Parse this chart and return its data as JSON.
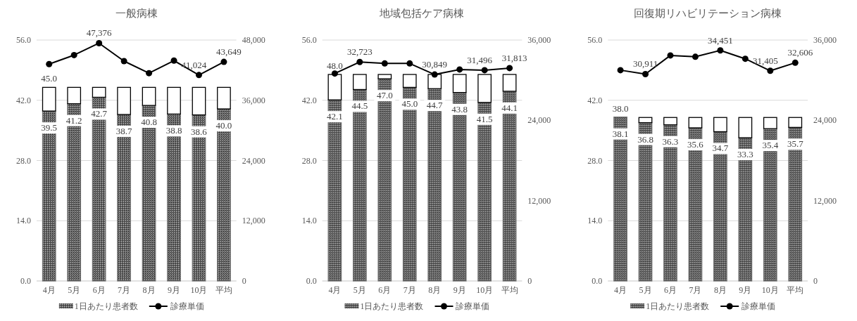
{
  "chart_data": [
    {
      "type": "bar",
      "stacked": true,
      "title": "一般病棟",
      "categories": [
        "4月",
        "5月",
        "6月",
        "7月",
        "8月",
        "9月",
        "10月",
        "平均"
      ],
      "ylim": [
        0,
        56
      ],
      "yticks": [
        {
          "value": 0,
          "label": "0.0"
        },
        {
          "value": 14,
          "label": "14.0"
        },
        {
          "value": 28,
          "label": "28.0"
        },
        {
          "value": 42,
          "label": "42.0"
        },
        {
          "value": 56,
          "label": "56.0"
        }
      ],
      "y2lim": [
        0,
        48000
      ],
      "y2ticks": [
        {
          "value": 0,
          "label": "0"
        },
        {
          "value": 12000,
          "label": "12,000"
        },
        {
          "value": 24000,
          "label": "24,000"
        },
        {
          "value": 36000,
          "label": "36,000"
        },
        {
          "value": 48000,
          "label": "48,000"
        }
      ],
      "grid": "y",
      "legend": "bottom",
      "totals": [
        "45.0",
        null,
        null,
        null,
        null,
        null,
        null,
        null
      ],
      "series": [
        {
          "type": "bar",
          "name": "1日あたり患者数",
          "color": "#707070",
          "values": [
            39.5,
            41.2,
            42.7,
            38.7,
            40.8,
            38.8,
            38.6,
            40.0
          ],
          "value_labels": [
            "39.5",
            "41.2",
            "42.7",
            "38.7",
            "40.8",
            "38.8",
            "38.6",
            "40.0"
          ]
        },
        {
          "type": "bar",
          "color": "#ffffff",
          "values": [
            5.5,
            3.8,
            2.3,
            6.3,
            4.2,
            6.2,
            6.4,
            5.0
          ]
        },
        {
          "type": "line",
          "name": "診療単価",
          "color": "#000000",
          "axis": "y2",
          "marker": "circle",
          "values": [
            43200,
            45000,
            47376,
            43800,
            41400,
            43900,
            41024,
            43649
          ],
          "value_labels": [
            null,
            null,
            "47,376",
            null,
            null,
            null,
            "41,024",
            "43,649"
          ]
        }
      ]
    },
    {
      "type": "bar",
      "stacked": true,
      "title": "地域包括ケア病棟",
      "categories": [
        "4月",
        "5月",
        "6月",
        "7月",
        "8月",
        "9月",
        "10月",
        "平均"
      ],
      "ylim": [
        0,
        56
      ],
      "yticks": [
        {
          "value": 0,
          "label": "0.0"
        },
        {
          "value": 14,
          "label": "14.0"
        },
        {
          "value": 28,
          "label": "28.0"
        },
        {
          "value": 42,
          "label": "42.0"
        },
        {
          "value": 56,
          "label": "56.0"
        }
      ],
      "y2lim": [
        0,
        36000
      ],
      "y2ticks": [
        {
          "value": 0,
          "label": "0"
        },
        {
          "value": 12000,
          "label": "12,000"
        },
        {
          "value": 24000,
          "label": "24,000"
        },
        {
          "value": 36000,
          "label": "36,000"
        }
      ],
      "grid": "y",
      "legend": "bottom",
      "totals": [
        "48.0",
        null,
        null,
        null,
        null,
        null,
        null,
        null
      ],
      "series": [
        {
          "type": "bar",
          "name": "1日あたり患者数",
          "color": "#707070",
          "values": [
            42.1,
            44.5,
            47.0,
            45.0,
            44.7,
            43.8,
            41.5,
            44.1
          ],
          "value_labels": [
            "42.1",
            "44.5",
            "47.0",
            "45.0",
            "44.7",
            "43.8",
            "41.5",
            "44.1"
          ]
        },
        {
          "type": "bar",
          "color": "#ffffff",
          "values": [
            5.9,
            3.5,
            1.0,
            3.0,
            3.3,
            4.2,
            6.5,
            3.9
          ]
        },
        {
          "type": "line",
          "name": "診療単価",
          "color": "#000000",
          "axis": "y2",
          "marker": "circle",
          "values": [
            31000,
            32723,
            32500,
            32500,
            30849,
            31600,
            31496,
            31813
          ],
          "value_labels": [
            null,
            "32,723",
            null,
            null,
            "30,849",
            null,
            "31,496",
            "31,813"
          ]
        }
      ]
    },
    {
      "type": "bar",
      "stacked": true,
      "title": "回復期リハビリテーション病棟",
      "categories": [
        "4月",
        "5月",
        "6月",
        "7月",
        "8月",
        "9月",
        "10月",
        "平均"
      ],
      "ylim": [
        0,
        56
      ],
      "yticks": [
        {
          "value": 0,
          "label": "0.0"
        },
        {
          "value": 14,
          "label": "14.0"
        },
        {
          "value": 28,
          "label": "28.0"
        },
        {
          "value": 42,
          "label": "42.0"
        },
        {
          "value": 56,
          "label": "56.0"
        }
      ],
      "y2lim": [
        0,
        36000
      ],
      "y2ticks": [
        {
          "value": 0,
          "label": "0"
        },
        {
          "value": 12000,
          "label": "12,000"
        },
        {
          "value": 24000,
          "label": "24,000"
        },
        {
          "value": 36000,
          "label": "36,000"
        }
      ],
      "grid": "y",
      "legend": "bottom",
      "totals": [
        "38.0",
        null,
        null,
        null,
        null,
        null,
        null,
        null
      ],
      "series": [
        {
          "type": "bar",
          "name": "1日あたり患者数",
          "color": "#707070",
          "values": [
            38.1,
            36.8,
            36.3,
            35.6,
            34.7,
            33.3,
            35.4,
            35.7
          ],
          "value_labels": [
            "38.1",
            "36.8",
            "36.3",
            "35.6",
            "34.7",
            "33.3",
            "35.4",
            "35.7"
          ]
        },
        {
          "type": "bar",
          "color": "#ffffff",
          "values": [
            0,
            1.2,
            1.7,
            2.4,
            3.3,
            4.7,
            2.6,
            2.3
          ]
        },
        {
          "type": "line",
          "name": "診療単価",
          "color": "#000000",
          "axis": "y2",
          "marker": "circle",
          "values": [
            31500,
            30911,
            33700,
            33500,
            34451,
            33200,
            31405,
            32606
          ],
          "value_labels": [
            null,
            "30,911",
            null,
            null,
            "34,451",
            null,
            "31,405",
            "32,606"
          ]
        }
      ]
    }
  ]
}
